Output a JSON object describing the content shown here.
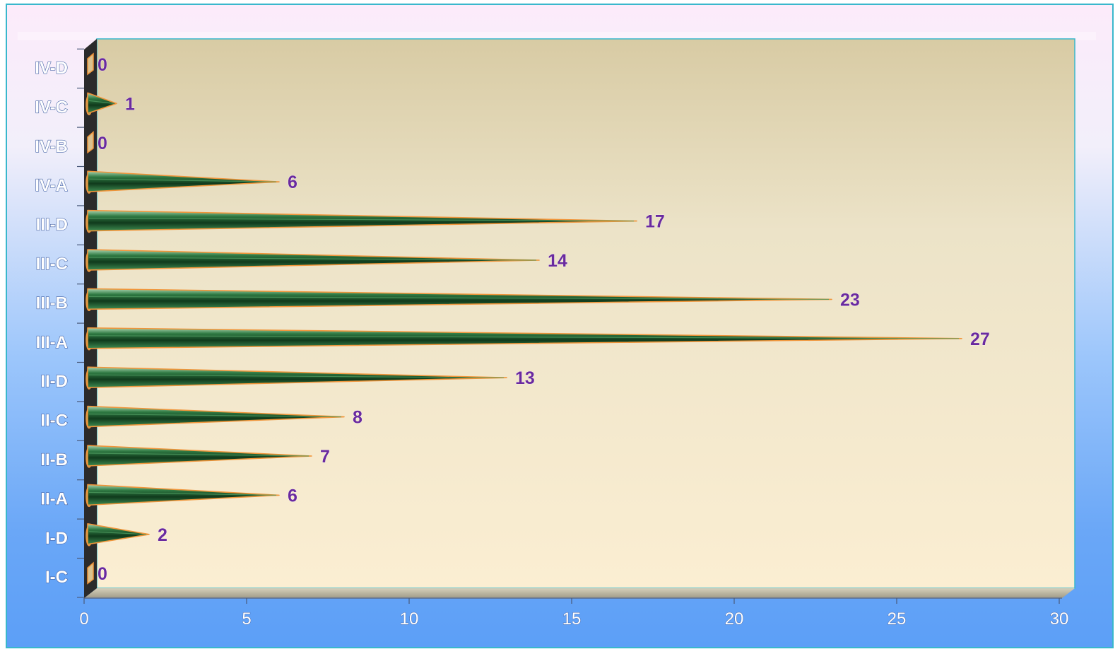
{
  "chart_data": {
    "type": "bar",
    "orientation": "horizontal",
    "categories": [
      "IV-D",
      "IV-C",
      "IV-B",
      "IV-A",
      "III-D",
      "III-C",
      "III-B",
      "III-A",
      "II-D",
      "II-C",
      "II-B",
      "II-A",
      "I-D",
      "I-C"
    ],
    "values": [
      0,
      1,
      0,
      6,
      17,
      14,
      23,
      27,
      13,
      8,
      7,
      6,
      2,
      0
    ],
    "value_labels": [
      "0",
      "1",
      "0",
      "6",
      "17",
      "14",
      "23",
      "27",
      "13",
      "8",
      "7",
      "6",
      "2",
      "0"
    ],
    "xlim": [
      0,
      30
    ],
    "x_ticks": [
      0,
      5,
      10,
      15,
      20,
      25,
      30
    ],
    "x_tick_labels": [
      "0",
      "5",
      "10",
      "15",
      "20",
      "25",
      "30"
    ],
    "title": "",
    "xlabel": "",
    "ylabel": "",
    "grid": false,
    "legend": "none",
    "bar_shape": "3d-cone",
    "colors": {
      "bar_fill": "#1f5a2e",
      "bar_highlight": "#4e9a5f",
      "bar_edge": "#f0953a",
      "value_label": "#6a2a9f",
      "category_label": "#ffffff",
      "plot_top": "#d8cba4",
      "plot_bottom": "#fbeed2",
      "frame_border": "#39b7cc"
    }
  }
}
